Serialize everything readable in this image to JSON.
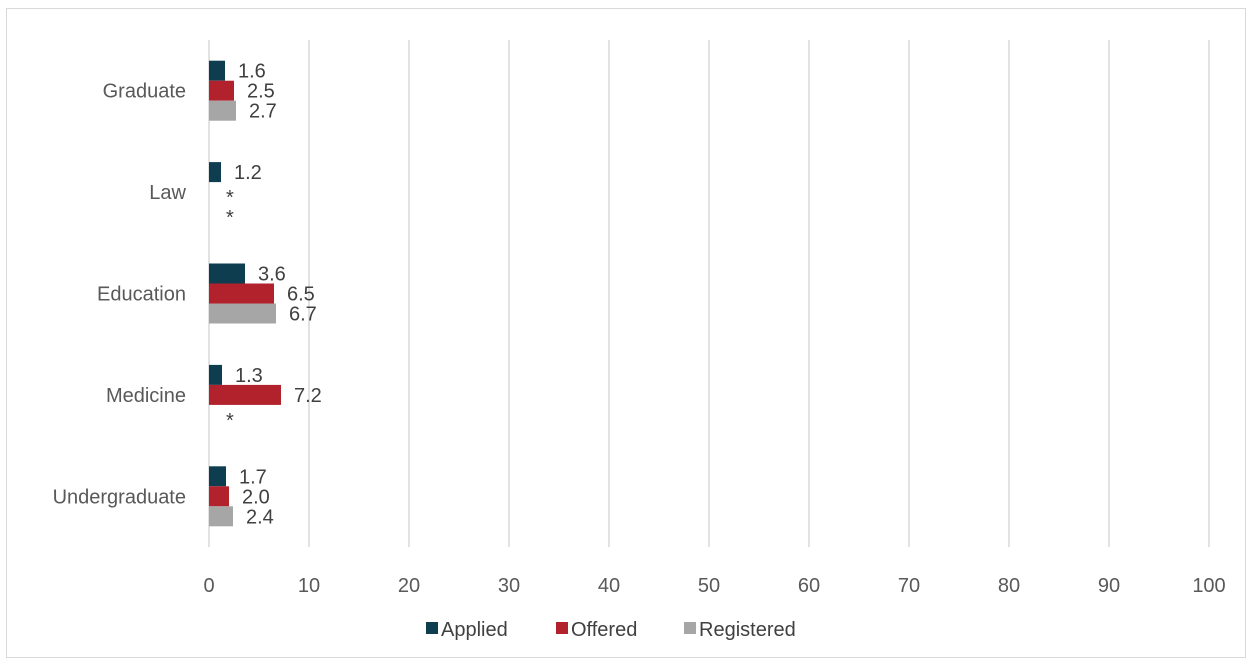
{
  "chart_data": {
    "type": "bar",
    "orientation": "horizontal",
    "categories": [
      "Graduate",
      "Law",
      "Education",
      "Medicine",
      "Undergraduate"
    ],
    "series": [
      {
        "name": "Applied",
        "color": "#0e3d4f",
        "values": [
          1.6,
          1.2,
          3.6,
          1.3,
          1.7
        ],
        "labels": [
          "1.6",
          "1.2",
          "3.6",
          "1.3",
          "1.7"
        ]
      },
      {
        "name": "Offered",
        "color": "#b2222d",
        "values": [
          2.5,
          null,
          6.5,
          7.2,
          2.0
        ],
        "labels": [
          "2.5",
          "*",
          "6.5",
          "7.2",
          "2.0"
        ]
      },
      {
        "name": "Registered",
        "color": "#a6a6a6",
        "values": [
          2.7,
          null,
          6.7,
          null,
          2.4
        ],
        "labels": [
          "2.7",
          "*",
          "6.7",
          "*",
          "2.4"
        ]
      }
    ],
    "xlim": [
      0,
      100
    ],
    "xticks": [
      "0",
      "10",
      "20",
      "30",
      "40",
      "50",
      "60",
      "70",
      "80",
      "90",
      "100"
    ],
    "grid": "vertical",
    "legend": "bottom",
    "title": "",
    "xlabel": "",
    "ylabel": ""
  }
}
